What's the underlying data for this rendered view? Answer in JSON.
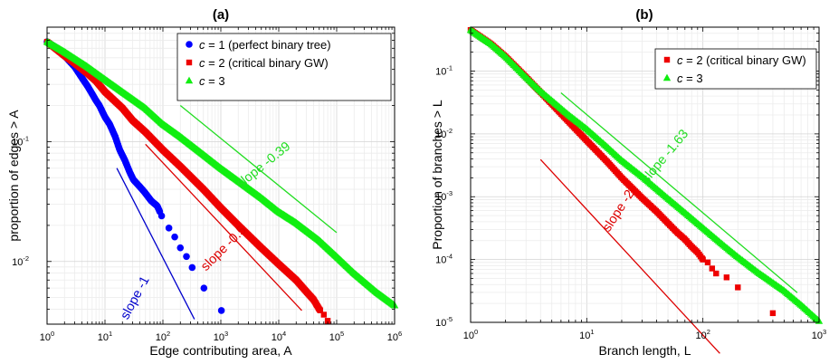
{
  "chart_data": [
    {
      "panel": "(a)",
      "type": "scatter",
      "xlabel": "Edge contributing area, A",
      "ylabel": "proportion of edges > A",
      "xscale": "log",
      "yscale": "log",
      "xlim": [
        1,
        1000000
      ],
      "ylim": [
        0.003,
        0.9
      ],
      "grid": true,
      "legend_position": "top-right",
      "x_ticks": [
        {
          "label": "10",
          "exp": "0"
        },
        {
          "label": "10",
          "exp": "1"
        },
        {
          "label": "10",
          "exp": "2"
        },
        {
          "label": "10",
          "exp": "3"
        },
        {
          "label": "10",
          "exp": "4"
        },
        {
          "label": "10",
          "exp": "5"
        },
        {
          "label": "10",
          "exp": "6"
        }
      ],
      "y_ticks": [
        {
          "value": 0.1,
          "label": "10",
          "exp": "-1"
        },
        {
          "value": 0.01,
          "label": "10",
          "exp": "-2"
        }
      ],
      "series": [
        {
          "name": "c = 1 (perfect binary tree)",
          "italic_part": "c",
          "rest": " = 1 (perfect binary tree)",
          "color": "#0000ff",
          "marker": "circle",
          "x": [
            1,
            1.5,
            2,
            3,
            4,
            5,
            6,
            7,
            8,
            10,
            12,
            15,
            18,
            22,
            27,
            31,
            40,
            48,
            63,
            80,
            95,
            127,
            160,
            200,
            255,
            320,
            511,
            1023
          ],
          "y": [
            0.68,
            0.6,
            0.52,
            0.42,
            0.34,
            0.29,
            0.25,
            0.22,
            0.2,
            0.16,
            0.14,
            0.11,
            0.085,
            0.07,
            0.055,
            0.048,
            0.042,
            0.038,
            0.032,
            0.029,
            0.024,
            0.019,
            0.016,
            0.013,
            0.011,
            0.0089,
            0.006,
            0.0039
          ]
        },
        {
          "name": "c = 2 (critical binary GW)",
          "italic_part": "c",
          "rest": " = 2 (critical binary GW)",
          "color": "#ee0000",
          "marker": "square",
          "x": [
            1,
            2,
            3,
            5,
            7,
            10,
            20,
            30,
            50,
            100,
            200,
            500,
            1000,
            2000,
            5000,
            10000,
            20000,
            30000,
            40000,
            50000,
            60000,
            70000
          ],
          "y": [
            0.68,
            0.52,
            0.45,
            0.37,
            0.32,
            0.26,
            0.19,
            0.15,
            0.12,
            0.085,
            0.062,
            0.04,
            0.028,
            0.02,
            0.013,
            0.0095,
            0.007,
            0.0056,
            0.0048,
            0.004,
            0.0036,
            0.0032
          ]
        },
        {
          "name": "c = 3",
          "italic_part": "c",
          "rest": " = 3",
          "color": "#11ee11",
          "marker": "triangle",
          "x": [
            1,
            2,
            5,
            10,
            20,
            50,
            100,
            200,
            500,
            1000,
            2000,
            5000,
            10000,
            20000,
            50000,
            100000,
            200000,
            500000,
            1000000
          ],
          "y": [
            0.68,
            0.56,
            0.42,
            0.33,
            0.26,
            0.19,
            0.14,
            0.11,
            0.078,
            0.06,
            0.047,
            0.034,
            0.026,
            0.021,
            0.015,
            0.011,
            0.008,
            0.0055,
            0.0043
          ]
        }
      ],
      "annotations": [
        {
          "text": "slope -1",
          "color": "#0000cc",
          "line": [
            [
              16,
              0.06
            ],
            [
              350,
              0.0033
            ]
          ],
          "text_at": [
            38,
            0.0048
          ],
          "angle": -62
        },
        {
          "text": "slope -0.5",
          "color": "#dd0000",
          "line": [
            [
              50,
              0.095
            ],
            [
              25000,
              0.0039
            ]
          ],
          "text_at": [
            1250,
            0.0122
          ],
          "angle": -45
        },
        {
          "text": "slope -0.39",
          "color": "#22dd22",
          "line": [
            [
              200,
              0.2
            ],
            [
              100000,
              0.0174
            ]
          ],
          "text_at": [
            6000,
            0.06
          ],
          "angle": -39
        }
      ]
    },
    {
      "panel": "(b)",
      "type": "scatter",
      "xlabel": "Branch length, L",
      "ylabel": "Proportion of branches > L",
      "xscale": "log",
      "yscale": "log",
      "xlim": [
        1,
        1000
      ],
      "ylim": [
        1e-05,
        0.5
      ],
      "grid": true,
      "legend_position": "top-right",
      "x_ticks": [
        {
          "label": "10",
          "exp": "0"
        },
        {
          "label": "10",
          "exp": "1"
        },
        {
          "label": "10",
          "exp": "2"
        },
        {
          "label": "10",
          "exp": "3"
        }
      ],
      "y_ticks": [
        {
          "value": 0.1,
          "label": "10",
          "exp": "-1"
        },
        {
          "value": 0.01,
          "label": "10",
          "exp": "-2"
        },
        {
          "value": 0.001,
          "label": "10",
          "exp": "-3"
        },
        {
          "value": 0.0001,
          "label": "10",
          "exp": "-4"
        },
        {
          "value": 1e-05,
          "label": "10",
          "exp": "-5"
        }
      ],
      "series": [
        {
          "name": "c = 2 (critical binary GW)",
          "italic_part": "c",
          "rest": " = 2 (critical binary GW)",
          "color": "#ee0000",
          "marker": "square",
          "x": [
            1,
            1.5,
            2,
            3,
            4,
            5,
            6,
            8,
            10,
            15,
            20,
            30,
            40,
            50,
            60,
            70,
            80,
            90,
            100,
            110,
            120,
            130,
            160,
            200,
            400
          ],
          "y": [
            0.45,
            0.27,
            0.17,
            0.08,
            0.046,
            0.03,
            0.021,
            0.012,
            0.0078,
            0.0036,
            0.002,
            0.00095,
            0.00058,
            0.00038,
            0.00027,
            0.00021,
            0.00016,
            0.00013,
            0.0001,
            9e-05,
            7.2e-05,
            6e-05,
            5.2e-05,
            3.6e-05,
            1.4e-05
          ]
        },
        {
          "name": "c = 3",
          "italic_part": "c",
          "rest": " = 3",
          "color": "#11ee11",
          "marker": "triangle",
          "x": [
            1,
            1.5,
            2,
            3,
            4,
            5,
            7,
            10,
            15,
            20,
            30,
            50,
            70,
            100,
            150,
            200,
            300,
            500,
            700,
            1000
          ],
          "y": [
            0.45,
            0.27,
            0.17,
            0.08,
            0.048,
            0.034,
            0.02,
            0.012,
            0.0062,
            0.0038,
            0.0021,
            0.00094,
            0.00056,
            0.00032,
            0.00017,
            0.00011,
            6.2e-05,
            3.2e-05,
            1.9e-05,
            1.05e-05
          ]
        }
      ],
      "annotations": [
        {
          "text": "slope -2",
          "color": "#dd0000",
          "line": [
            [
              4,
              0.0039
            ],
            [
              140,
              3.2e-06
            ]
          ],
          "text_at": [
            20,
            0.00055
          ],
          "angle": -57
        },
        {
          "text": "slope -1.63",
          "color": "#22dd22",
          "line": [
            [
              6,
              0.045
            ],
            [
              650,
              2.97e-05
            ]
          ],
          "text_at": [
            50,
            0.004
          ],
          "angle": -50
        }
      ]
    }
  ]
}
